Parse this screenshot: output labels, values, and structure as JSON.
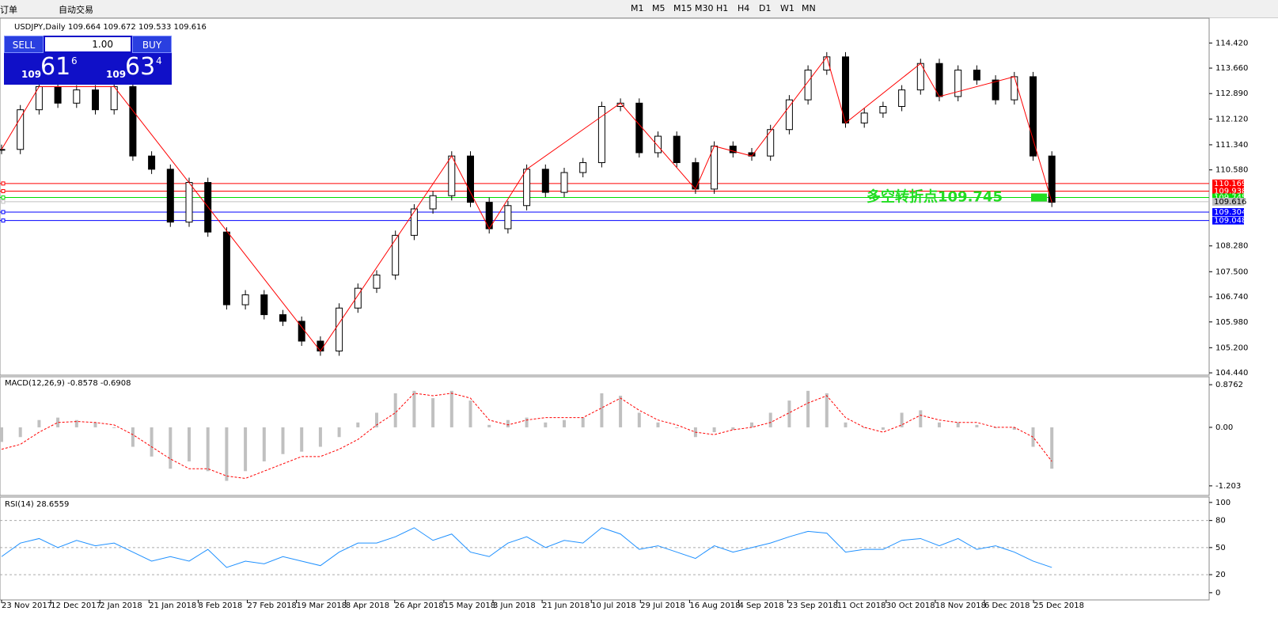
{
  "toolbar": {
    "order": "订单",
    "auto_trade": "自动交易",
    "timeframes": [
      "M1",
      "M5",
      "M15",
      "M30",
      "H1",
      "H4",
      "D1",
      "W1",
      "MN"
    ]
  },
  "chart_header": "USDJPY,Daily  109.664 109.672 109.533 109.616",
  "trade_panel": {
    "sell": "SELL",
    "buy": "BUY",
    "lot": "1.00",
    "sell_big": "109",
    "sell_digits": "61",
    "sell_pip": "6",
    "buy_big": "109",
    "buy_digits": "63",
    "buy_pip": "4"
  },
  "chart_data": {
    "type": "candlestick",
    "x_labels": [
      "23 Nov 2017",
      "12 Dec 2017",
      "2 Jan 2018",
      "21 Jan 2018",
      "8 Feb 2018",
      "27 Feb 2018",
      "19 Mar 2018",
      "8 Apr 2018",
      "26 Apr 2018",
      "15 May 2018",
      "3 Jun 2018",
      "21 Jun 2018",
      "10 Jul 2018",
      "29 Jul 2018",
      "16 Aug 2018",
      "4 Sep 2018",
      "23 Sep 2018",
      "11 Oct 2018",
      "30 Oct 2018",
      "18 Nov 2018",
      "6 Dec 2018",
      "25 Dec 2018"
    ],
    "values": [
      111.2,
      112.4,
      113.1,
      112.6,
      113.0,
      112.4,
      113.1,
      111.0,
      110.6,
      109.0,
      110.2,
      108.7,
      106.5,
      106.8,
      106.2,
      106.0,
      105.4,
      105.1,
      106.4,
      107.0,
      107.4,
      108.6,
      109.4,
      109.8,
      111.0,
      109.6,
      108.8,
      109.5,
      110.6,
      109.9,
      110.5,
      110.8,
      112.5,
      112.6,
      111.1,
      111.6,
      110.8,
      110.0,
      111.3,
      111.1,
      111.0,
      111.8,
      112.7,
      113.6,
      114.0,
      112.0,
      112.3,
      112.5,
      113.0,
      113.8,
      112.8,
      113.6,
      113.3,
      112.7,
      113.4,
      111.0,
      109.6
    ],
    "ylim": [
      104.37,
      115.17
    ],
    "yticks": [
      {
        "value": 114.42,
        "label": "114.420"
      },
      {
        "value": 113.66,
        "label": "113.660"
      },
      {
        "value": 112.89,
        "label": "112.890"
      },
      {
        "value": 112.12,
        "label": "112.120"
      },
      {
        "value": 111.34,
        "label": "111.340"
      },
      {
        "value": 110.58,
        "label": "110.580"
      },
      {
        "value": 108.28,
        "label": "108.280"
      },
      {
        "value": 107.5,
        "label": "107.500"
      },
      {
        "value": 106.74,
        "label": "106.740"
      },
      {
        "value": 105.98,
        "label": "105.980"
      },
      {
        "value": 105.2,
        "label": "105.200"
      },
      {
        "value": 104.44,
        "label": "104.440"
      }
    ],
    "levels": [
      {
        "value": 110.169,
        "color": "#ff0000"
      },
      {
        "value": 109.938,
        "color": "#ff0000"
      },
      {
        "value": 109.745,
        "color": "#00dd00"
      },
      {
        "value": 109.616,
        "color": "#c0c0c0"
      },
      {
        "value": 109.304,
        "color": "#0000ff"
      },
      {
        "value": 109.048,
        "color": "#0000ff"
      }
    ],
    "annotation": "多空转折点109.745",
    "zigzag_color": "#ff0000"
  },
  "macd": {
    "title": "MACD(12,26,9) -0.8578 -0.6908",
    "ylim": [
      -1.4,
      1.04
    ],
    "yticks": [
      0.8762,
      {
        "value": 0,
        "label": "0.00"
      },
      -1.203
    ],
    "histogram": [
      -0.3,
      -0.2,
      0.15,
      0.2,
      0.15,
      0.1,
      0.0,
      -0.4,
      -0.6,
      -0.85,
      -0.7,
      -0.9,
      -1.1,
      -0.9,
      -0.7,
      -0.55,
      -0.5,
      -0.4,
      -0.2,
      0.1,
      0.3,
      0.7,
      0.75,
      0.6,
      0.75,
      0.55,
      0.05,
      0.15,
      0.2,
      0.1,
      0.15,
      0.2,
      0.7,
      0.65,
      0.3,
      0.1,
      0.0,
      -0.2,
      -0.1,
      -0.05,
      0.1,
      0.3,
      0.55,
      0.75,
      0.7,
      0.1,
      0.0,
      -0.05,
      0.3,
      0.35,
      0.1,
      0.1,
      0.05,
      0.0,
      -0.05,
      -0.4,
      -0.85
    ],
    "signal": [
      -0.45,
      -0.35,
      -0.1,
      0.1,
      0.12,
      0.1,
      0.05,
      -0.15,
      -0.4,
      -0.65,
      -0.85,
      -0.85,
      -1.0,
      -1.05,
      -0.9,
      -0.75,
      -0.6,
      -0.6,
      -0.45,
      -0.25,
      0.05,
      0.3,
      0.7,
      0.65,
      0.7,
      0.6,
      0.15,
      0.05,
      0.15,
      0.2,
      0.2,
      0.2,
      0.4,
      0.6,
      0.35,
      0.15,
      0.05,
      -0.1,
      -0.15,
      -0.05,
      0.0,
      0.1,
      0.3,
      0.5,
      0.65,
      0.2,
      0.0,
      -0.1,
      0.05,
      0.25,
      0.15,
      0.1,
      0.1,
      0.0,
      0.0,
      -0.2,
      -0.7
    ]
  },
  "rsi": {
    "title": "RSI(14) 28.6559",
    "ylim": [
      -8,
      106
    ],
    "yticks": [
      100,
      80,
      50,
      20,
      0
    ],
    "levels": [
      80,
      50,
      20
    ],
    "values": [
      40,
      55,
      60,
      50,
      58,
      52,
      55,
      45,
      35,
      40,
      35,
      48,
      28,
      35,
      32,
      40,
      35,
      30,
      45,
      55,
      55,
      62,
      72,
      58,
      65,
      45,
      40,
      55,
      62,
      50,
      58,
      55,
      72,
      65,
      48,
      52,
      45,
      38,
      52,
      45,
      50,
      55,
      62,
      68,
      66,
      45,
      48,
      48,
      58,
      60,
      52,
      60,
      48,
      52,
      45,
      35,
      28
    ]
  }
}
